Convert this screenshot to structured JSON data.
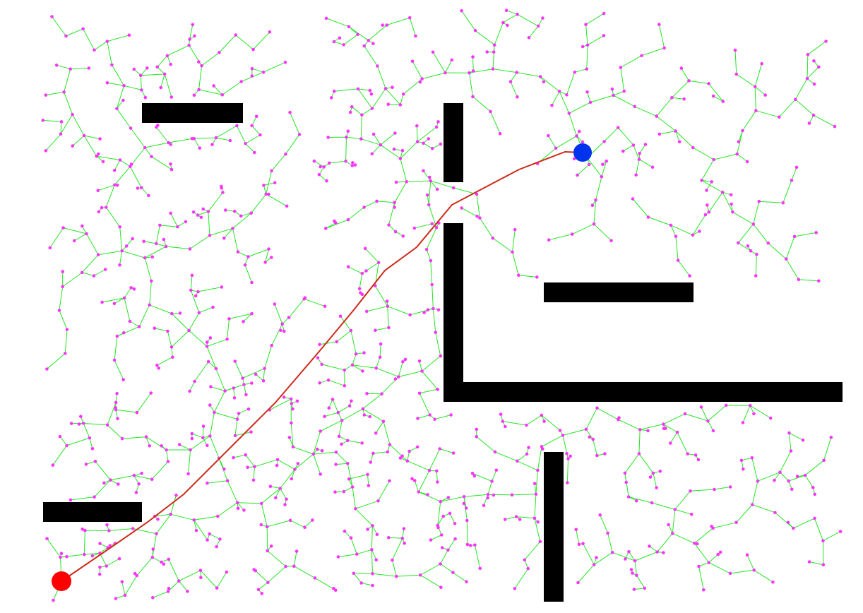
{
  "colors": {
    "background": "#ffffff",
    "obstacle": "#000000",
    "tree_edge": "#22e622",
    "tree_node": "#ff33ff",
    "path": "#cc2a1a",
    "start": "#ff0000",
    "goal": "#0033ee"
  },
  "markers": {
    "start": {
      "name": "start-node",
      "color": "#ff0000"
    },
    "goal": {
      "name": "goal-node",
      "color": "#0033ee"
    }
  },
  "obstacle_count": 7,
  "tree": {
    "node_count": 900,
    "random_seed": 17
  }
}
